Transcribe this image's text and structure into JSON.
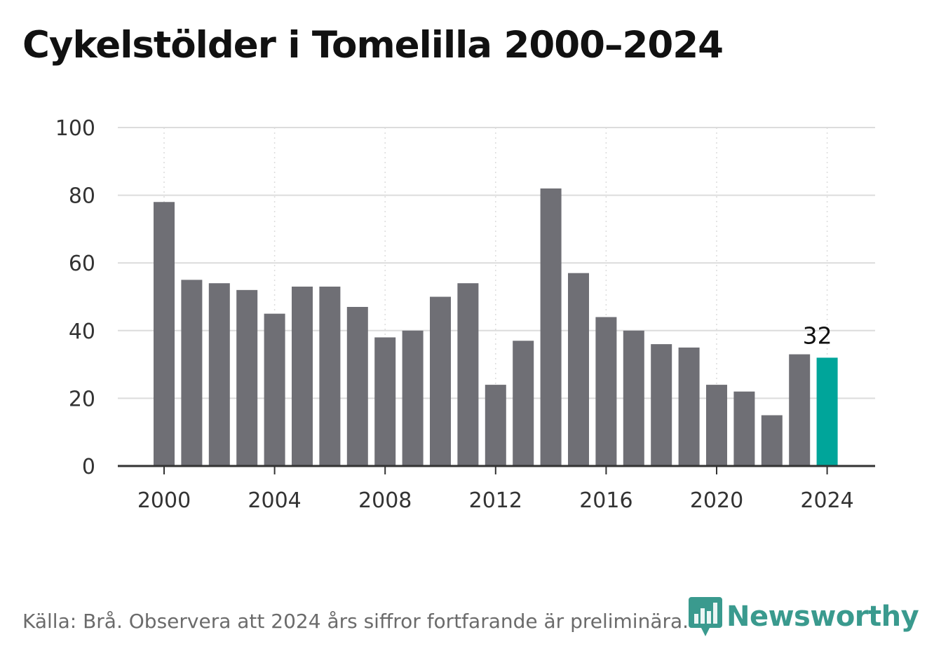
{
  "title": "Cykelstölder i Tomelilla 2000–2024",
  "source": "Källa: Brå. Observera att 2024 års siffror fortfarande är preliminära.",
  "brand": {
    "name": "Newsworthy",
    "color": "#3a9a8e",
    "icon": "newsworthy-bar-chart-logo-icon"
  },
  "colors": {
    "bar": "#6f6f75",
    "highlight": "#00a59a",
    "grid": "#dcdcdc",
    "axis": "#333333"
  },
  "chart_data": {
    "type": "bar",
    "x": [
      2000,
      2001,
      2002,
      2003,
      2004,
      2005,
      2006,
      2007,
      2008,
      2009,
      2010,
      2011,
      2012,
      2013,
      2014,
      2015,
      2016,
      2017,
      2018,
      2019,
      2020,
      2021,
      2022,
      2023,
      2024
    ],
    "values": [
      78,
      55,
      54,
      52,
      45,
      53,
      53,
      47,
      38,
      40,
      50,
      54,
      24,
      37,
      82,
      57,
      44,
      40,
      36,
      35,
      24,
      22,
      15,
      33,
      32
    ],
    "highlight_index": 24,
    "value_labels": [
      {
        "index": 24,
        "text": "32"
      }
    ],
    "x_ticks": [
      "2000",
      "2004",
      "2008",
      "2012",
      "2016",
      "2020",
      "2024"
    ],
    "y_ticks": [
      "0",
      "20",
      "40",
      "60",
      "80",
      "100"
    ],
    "ylim": [
      0,
      100
    ],
    "grid": true,
    "title": "Cykelstölder i Tomelilla 2000–2024",
    "xlabel": "",
    "ylabel": ""
  }
}
